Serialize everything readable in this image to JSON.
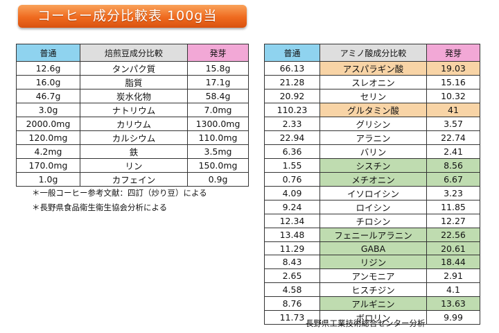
{
  "title": "コーヒー成分比較表 100g当",
  "table1": {
    "headers": [
      "普通",
      "焙煎豆成分比較",
      "発芽"
    ],
    "rows": [
      [
        "12.6g",
        "タンパク質",
        "15.8g"
      ],
      [
        "16.0g",
        "脂質",
        "17.1g"
      ],
      [
        "46.7g",
        "炭水化物",
        "58.4g"
      ],
      [
        "3.0g",
        "ナトリウム",
        "7.0mg"
      ],
      [
        "2000.0mg",
        "カリウム",
        "1300.0mg"
      ],
      [
        "120.0mg",
        "カルシウム",
        "110.0mg"
      ],
      [
        "4.2mg",
        "鉄",
        "3.5mg"
      ],
      [
        "170.0mg",
        "リン",
        "150.0mg"
      ],
      [
        "1.0g",
        "カフェイン",
        "0.9g"
      ]
    ]
  },
  "notes": [
    "＊一般コーヒー参考文献：四訂（炒り豆）による",
    "＊長野県食品衛生衛生協会分析による"
  ],
  "table2": {
    "headers": [
      "普通",
      "アミノ酸成分比較",
      "発芽"
    ],
    "rows": [
      [
        "66.13",
        "アスパラギン酸",
        "19.03"
      ],
      [
        "21.28",
        "スレオニン",
        "15.16"
      ],
      [
        "20.92",
        "セリン",
        "10.32"
      ],
      [
        "110.23",
        "グルタミン酸",
        "41"
      ],
      [
        "2.33",
        "グリシン",
        "3.57"
      ],
      [
        "22.94",
        "アラニン",
        "22.74"
      ],
      [
        "6.36",
        "バリン",
        "2.41"
      ],
      [
        "1.55",
        "シスチン",
        "8.56"
      ],
      [
        "0.76",
        "メチオニン",
        "6.67"
      ],
      [
        "4.09",
        "イソロイシン",
        "3.23"
      ],
      [
        "9.24",
        "ロイシン",
        "11.85"
      ],
      [
        "12.34",
        "チロシン",
        "12.27"
      ],
      [
        "13.48",
        "フェニールアラニン",
        "22.56"
      ],
      [
        "11.29",
        "GABA",
        "20.61"
      ],
      [
        "8.43",
        "リジン",
        "18.44"
      ],
      [
        "2.65",
        "アンモニア",
        "2.91"
      ],
      [
        "4.58",
        "ヒスチジン",
        "4.1"
      ],
      [
        "8.76",
        "アルギニン",
        "13.63"
      ],
      [
        "11.73",
        "ボロリン",
        "9.99"
      ]
    ]
  },
  "source": "長野県工業技術総合センター分析",
  "colors": {
    "banner": "#ef6a1f",
    "header_normal": "#8fd3ef",
    "header_name": "#dedede",
    "header_germ": "#f2a8d6",
    "highlight_orange": "#f8d4a6",
    "highlight_green": "#bfdcb0"
  }
}
